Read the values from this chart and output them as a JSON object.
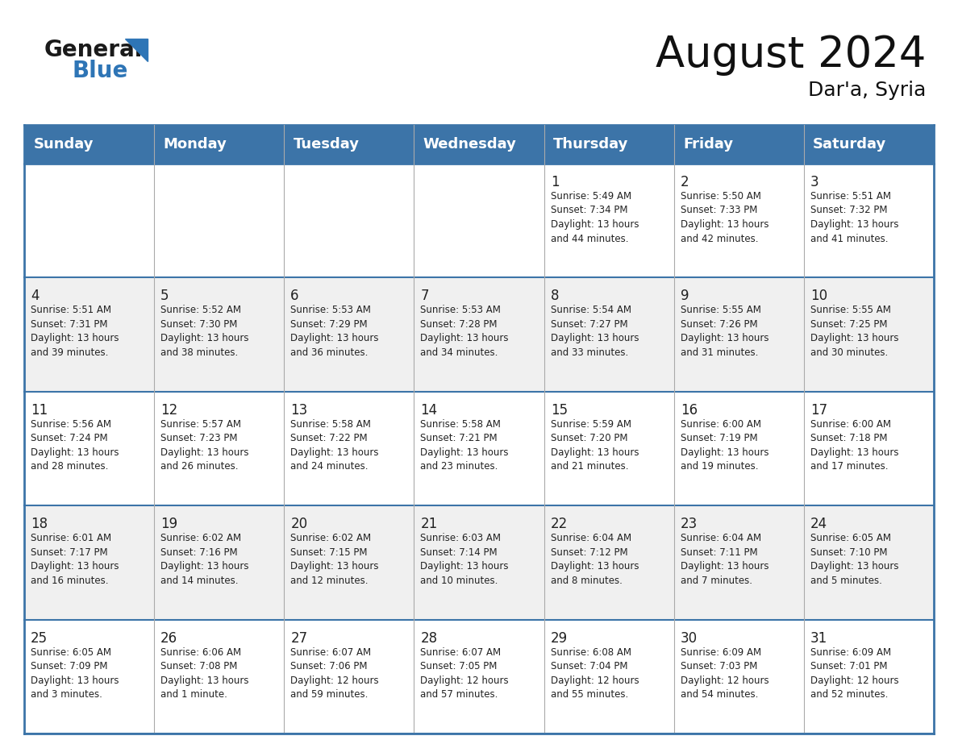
{
  "title": "August 2024",
  "subtitle": "Dar'a, Syria",
  "header_color": "#3C74A8",
  "header_text_color": "#FFFFFF",
  "days_of_week": [
    "Sunday",
    "Monday",
    "Tuesday",
    "Wednesday",
    "Thursday",
    "Friday",
    "Saturday"
  ],
  "row_colors": [
    "#FFFFFF",
    "#F0F0F0"
  ],
  "border_color": "#3C74A8",
  "text_color": "#222222",
  "title_fontsize": 38,
  "subtitle_fontsize": 18,
  "header_fontsize": 13,
  "day_num_fontsize": 12,
  "cell_text_fontsize": 8.5,
  "logo_general_color": "#1a1a1a",
  "logo_blue_color": "#2E75B6",
  "logo_triangle_color": "#2E75B6",
  "calendar_data": [
    [
      null,
      null,
      null,
      null,
      {
        "day": 1,
        "sunrise": "5:49 AM",
        "sunset": "7:34 PM",
        "daylight_h": "13 hours",
        "daylight_m": "44 minutes"
      },
      {
        "day": 2,
        "sunrise": "5:50 AM",
        "sunset": "7:33 PM",
        "daylight_h": "13 hours",
        "daylight_m": "42 minutes"
      },
      {
        "day": 3,
        "sunrise": "5:51 AM",
        "sunset": "7:32 PM",
        "daylight_h": "13 hours",
        "daylight_m": "41 minutes"
      }
    ],
    [
      {
        "day": 4,
        "sunrise": "5:51 AM",
        "sunset": "7:31 PM",
        "daylight_h": "13 hours",
        "daylight_m": "39 minutes"
      },
      {
        "day": 5,
        "sunrise": "5:52 AM",
        "sunset": "7:30 PM",
        "daylight_h": "13 hours",
        "daylight_m": "38 minutes"
      },
      {
        "day": 6,
        "sunrise": "5:53 AM",
        "sunset": "7:29 PM",
        "daylight_h": "13 hours",
        "daylight_m": "36 minutes"
      },
      {
        "day": 7,
        "sunrise": "5:53 AM",
        "sunset": "7:28 PM",
        "daylight_h": "13 hours",
        "daylight_m": "34 minutes"
      },
      {
        "day": 8,
        "sunrise": "5:54 AM",
        "sunset": "7:27 PM",
        "daylight_h": "13 hours",
        "daylight_m": "33 minutes"
      },
      {
        "day": 9,
        "sunrise": "5:55 AM",
        "sunset": "7:26 PM",
        "daylight_h": "13 hours",
        "daylight_m": "31 minutes"
      },
      {
        "day": 10,
        "sunrise": "5:55 AM",
        "sunset": "7:25 PM",
        "daylight_h": "13 hours",
        "daylight_m": "30 minutes"
      }
    ],
    [
      {
        "day": 11,
        "sunrise": "5:56 AM",
        "sunset": "7:24 PM",
        "daylight_h": "13 hours",
        "daylight_m": "28 minutes"
      },
      {
        "day": 12,
        "sunrise": "5:57 AM",
        "sunset": "7:23 PM",
        "daylight_h": "13 hours",
        "daylight_m": "26 minutes"
      },
      {
        "day": 13,
        "sunrise": "5:58 AM",
        "sunset": "7:22 PM",
        "daylight_h": "13 hours",
        "daylight_m": "24 minutes"
      },
      {
        "day": 14,
        "sunrise": "5:58 AM",
        "sunset": "7:21 PM",
        "daylight_h": "13 hours",
        "daylight_m": "23 minutes"
      },
      {
        "day": 15,
        "sunrise": "5:59 AM",
        "sunset": "7:20 PM",
        "daylight_h": "13 hours",
        "daylight_m": "21 minutes"
      },
      {
        "day": 16,
        "sunrise": "6:00 AM",
        "sunset": "7:19 PM",
        "daylight_h": "13 hours",
        "daylight_m": "19 minutes"
      },
      {
        "day": 17,
        "sunrise": "6:00 AM",
        "sunset": "7:18 PM",
        "daylight_h": "13 hours",
        "daylight_m": "17 minutes"
      }
    ],
    [
      {
        "day": 18,
        "sunrise": "6:01 AM",
        "sunset": "7:17 PM",
        "daylight_h": "13 hours",
        "daylight_m": "16 minutes"
      },
      {
        "day": 19,
        "sunrise": "6:02 AM",
        "sunset": "7:16 PM",
        "daylight_h": "13 hours",
        "daylight_m": "14 minutes"
      },
      {
        "day": 20,
        "sunrise": "6:02 AM",
        "sunset": "7:15 PM",
        "daylight_h": "13 hours",
        "daylight_m": "12 minutes"
      },
      {
        "day": 21,
        "sunrise": "6:03 AM",
        "sunset": "7:14 PM",
        "daylight_h": "13 hours",
        "daylight_m": "10 minutes"
      },
      {
        "day": 22,
        "sunrise": "6:04 AM",
        "sunset": "7:12 PM",
        "daylight_h": "13 hours",
        "daylight_m": "8 minutes"
      },
      {
        "day": 23,
        "sunrise": "6:04 AM",
        "sunset": "7:11 PM",
        "daylight_h": "13 hours",
        "daylight_m": "7 minutes"
      },
      {
        "day": 24,
        "sunrise": "6:05 AM",
        "sunset": "7:10 PM",
        "daylight_h": "13 hours",
        "daylight_m": "5 minutes"
      }
    ],
    [
      {
        "day": 25,
        "sunrise": "6:05 AM",
        "sunset": "7:09 PM",
        "daylight_h": "13 hours",
        "daylight_m": "3 minutes"
      },
      {
        "day": 26,
        "sunrise": "6:06 AM",
        "sunset": "7:08 PM",
        "daylight_h": "13 hours",
        "daylight_m": "1 minute"
      },
      {
        "day": 27,
        "sunrise": "6:07 AM",
        "sunset": "7:06 PM",
        "daylight_h": "12 hours",
        "daylight_m": "59 minutes"
      },
      {
        "day": 28,
        "sunrise": "6:07 AM",
        "sunset": "7:05 PM",
        "daylight_h": "12 hours",
        "daylight_m": "57 minutes"
      },
      {
        "day": 29,
        "sunrise": "6:08 AM",
        "sunset": "7:04 PM",
        "daylight_h": "12 hours",
        "daylight_m": "55 minutes"
      },
      {
        "day": 30,
        "sunrise": "6:09 AM",
        "sunset": "7:03 PM",
        "daylight_h": "12 hours",
        "daylight_m": "54 minutes"
      },
      {
        "day": 31,
        "sunrise": "6:09 AM",
        "sunset": "7:01 PM",
        "daylight_h": "12 hours",
        "daylight_m": "52 minutes"
      }
    ]
  ]
}
